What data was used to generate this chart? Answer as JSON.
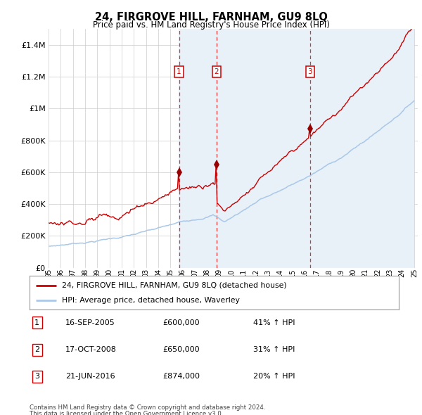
{
  "title": "24, FIRGROVE HILL, FARNHAM, GU9 8LQ",
  "subtitle": "Price paid vs. HM Land Registry's House Price Index (HPI)",
  "ylim": [
    0,
    1500000
  ],
  "yticks": [
    0,
    200000,
    400000,
    600000,
    800000,
    1000000,
    1200000,
    1400000
  ],
  "ytick_labels": [
    "£0",
    "£200K",
    "£400K",
    "£600K",
    "£800K",
    "£1M",
    "£1.2M",
    "£1.4M"
  ],
  "xstart": 1995,
  "xend": 2025,
  "background_color": "#ffffff",
  "grid_color": "#cccccc",
  "hpi_color": "#aac8e8",
  "price_color": "#cc0000",
  "sale_marker_color": "#990000",
  "sale_years": [
    2005.708,
    2008.792,
    2016.458
  ],
  "sale_prices": [
    600000,
    650000,
    874000
  ],
  "sale_labels": [
    "1",
    "2",
    "3"
  ],
  "vline_color": "#dd3333",
  "shade_color": "#ddeeff",
  "legend_entries": [
    "24, FIRGROVE HILL, FARNHAM, GU9 8LQ (detached house)",
    "HPI: Average price, detached house, Waverley"
  ],
  "table_rows": [
    [
      "1",
      "16-SEP-2005",
      "£600,000",
      "41% ↑ HPI"
    ],
    [
      "2",
      "17-OCT-2008",
      "£650,000",
      "31% ↑ HPI"
    ],
    [
      "3",
      "21-JUN-2016",
      "£874,000",
      "20% ↑ HPI"
    ]
  ],
  "footnote1": "Contains HM Land Registry data © Crown copyright and database right 2024.",
  "footnote2": "This data is licensed under the Open Government Licence v3.0."
}
